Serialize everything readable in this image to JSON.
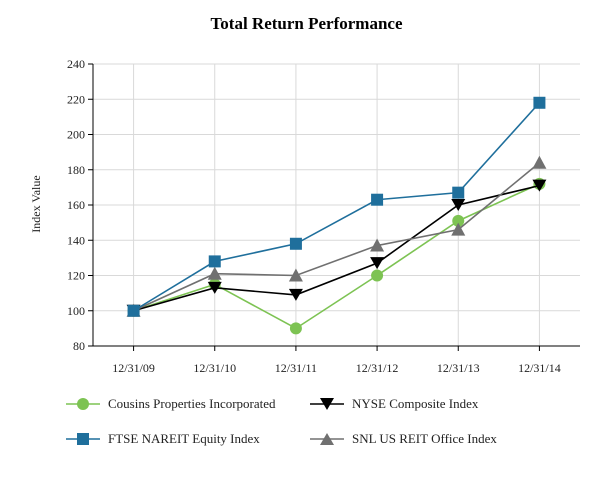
{
  "chart_data": {
    "type": "line",
    "title": "Total Return Performance",
    "xlabel": "",
    "ylabel": "Index Value",
    "categories": [
      "12/31/09",
      "12/31/10",
      "12/31/11",
      "12/31/12",
      "12/31/13",
      "12/31/14"
    ],
    "ylim": [
      80,
      240
    ],
    "yticks": [
      80,
      100,
      120,
      140,
      160,
      180,
      200,
      220,
      240
    ],
    "grid": true,
    "legend_position": "bottom",
    "series": [
      {
        "name": "Cousins Properties Incorporated",
        "color": "#7dc353",
        "marker": "circle",
        "values": [
          100,
          115,
          90,
          120,
          151,
          172
        ]
      },
      {
        "name": "NYSE Composite Index",
        "color": "#000000",
        "marker": "triangle-down",
        "values": [
          100,
          113,
          109,
          127,
          160,
          171
        ]
      },
      {
        "name": "FTSE NAREIT Equity Index",
        "color": "#1f6f9c",
        "marker": "square",
        "values": [
          100,
          128,
          138,
          163,
          167,
          218
        ]
      },
      {
        "name": "SNL US REIT Office Index",
        "color": "#707070",
        "marker": "triangle-up",
        "values": [
          100,
          121,
          120,
          137,
          146,
          184
        ]
      }
    ]
  }
}
